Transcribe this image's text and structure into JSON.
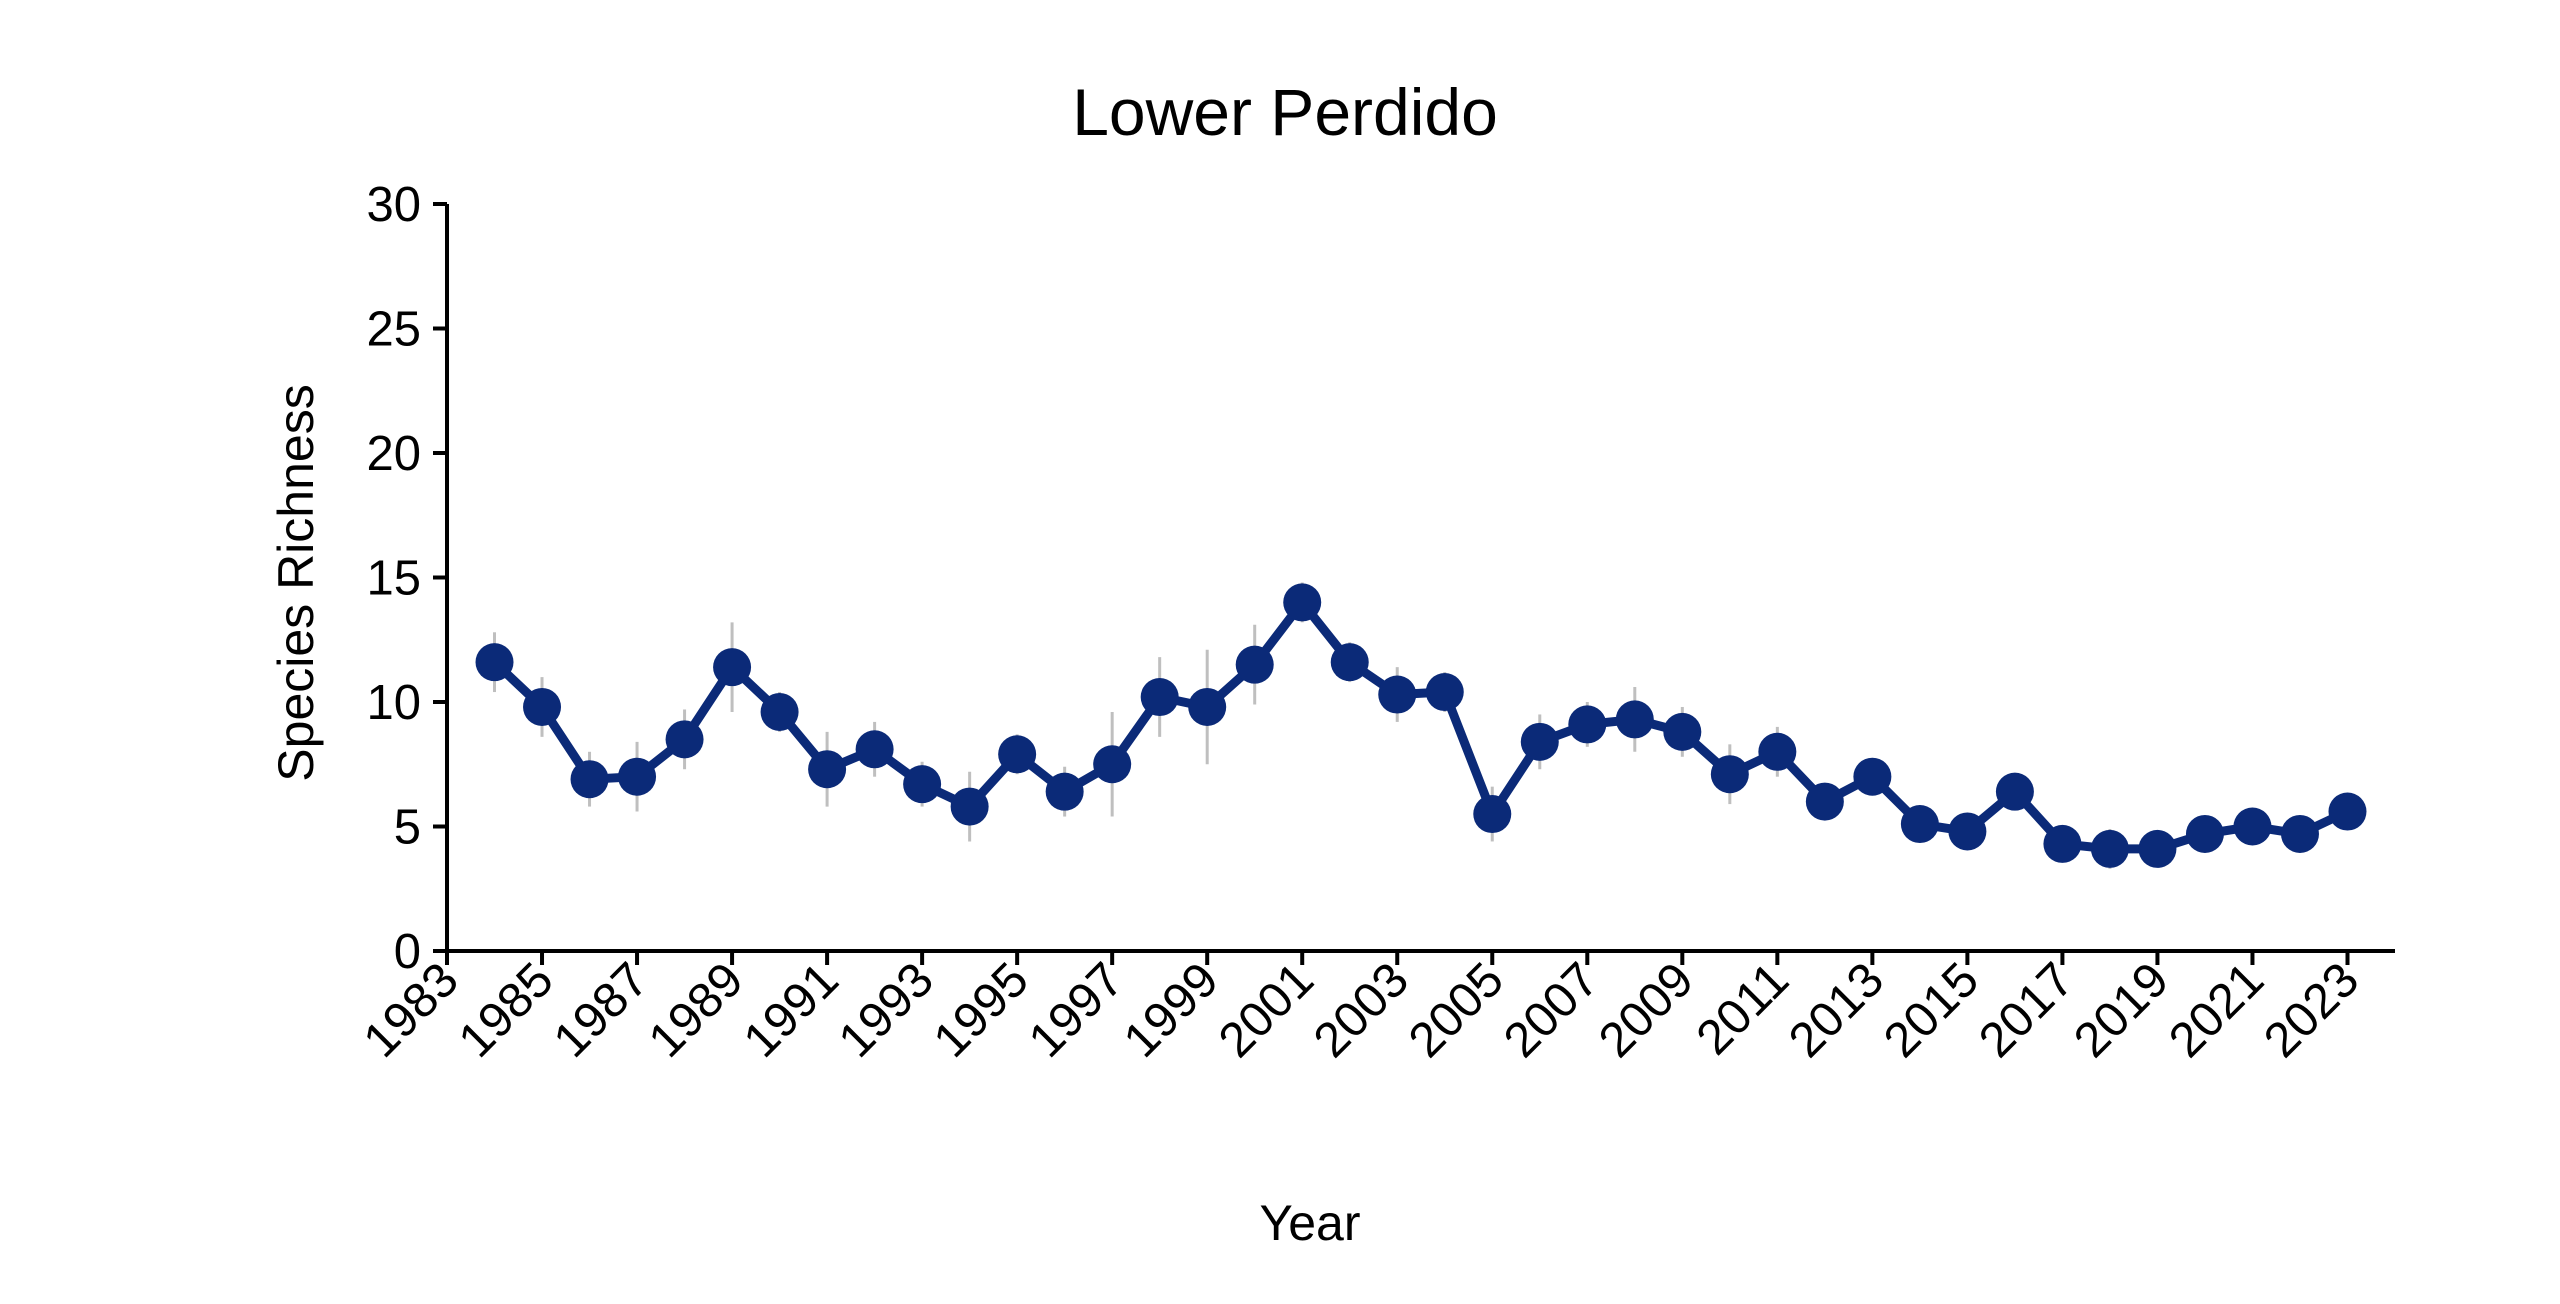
{
  "chart_data": {
    "type": "line",
    "title": "Lower Perdido",
    "xlabel": "Year",
    "ylabel": "Species Richness",
    "xlim": [
      1983,
      2024
    ],
    "ylim": [
      0,
      30
    ],
    "x_ticks": [
      "1983",
      "1985",
      "1987",
      "1989",
      "1991",
      "1993",
      "1995",
      "1997",
      "1999",
      "2001",
      "2003",
      "2005",
      "2007",
      "2009",
      "2011",
      "2013",
      "2015",
      "2017",
      "2019",
      "2021",
      "2023"
    ],
    "y_ticks": [
      "0",
      "5",
      "10",
      "15",
      "20",
      "25",
      "30"
    ],
    "grid": false,
    "legend": "none",
    "colors": {
      "series": "#0b2a78",
      "error_bars": "#bfbfbf",
      "axis": "#000000"
    },
    "series": [
      {
        "x": [
          1984,
          1985,
          1986,
          1987,
          1988,
          1989,
          1990,
          1991,
          1992,
          1993,
          1994,
          1995,
          1996,
          1997,
          1998,
          1999,
          2000,
          2001,
          2002,
          2003,
          2004,
          2005,
          2006,
          2007,
          2008,
          2009,
          2010,
          2011,
          2012,
          2013,
          2014,
          2015,
          2016,
          2017,
          2018,
          2019,
          2020,
          2021,
          2022,
          2023
        ],
        "values": [
          11.6,
          9.8,
          6.9,
          7.0,
          8.5,
          11.4,
          9.6,
          7.3,
          8.1,
          6.7,
          5.8,
          7.9,
          6.4,
          7.5,
          10.2,
          9.8,
          11.5,
          14.0,
          11.6,
          10.3,
          10.4,
          5.5,
          8.4,
          9.1,
          9.3,
          8.8,
          7.1,
          8.0,
          6.0,
          7.0,
          5.1,
          4.8,
          6.4,
          4.3,
          4.1,
          4.1,
          4.7,
          5.0,
          4.7,
          5.6
        ],
        "error_low": [
          10.4,
          8.6,
          5.8,
          5.6,
          7.3,
          9.6,
          8.8,
          5.8,
          7.0,
          5.8,
          4.4,
          7.1,
          5.4,
          5.4,
          8.6,
          7.5,
          9.9,
          13.2,
          10.8,
          9.2,
          9.6,
          4.4,
          7.3,
          8.2,
          8.0,
          7.8,
          5.9,
          7.0,
          5.3,
          6.3,
          4.6,
          4.1,
          5.8,
          3.7,
          3.3,
          3.6,
          4.2,
          4.5,
          4.2,
          5.1
        ],
        "error_high": [
          12.8,
          11.0,
          8.0,
          8.4,
          9.7,
          13.2,
          10.4,
          8.8,
          9.2,
          7.6,
          7.2,
          8.7,
          7.4,
          9.6,
          11.8,
          12.1,
          13.1,
          14.8,
          12.4,
          11.4,
          11.2,
          6.6,
          9.5,
          10.0,
          10.6,
          9.8,
          8.3,
          9.0,
          6.7,
          7.7,
          5.6,
          5.5,
          7.0,
          4.9,
          4.9,
          4.6,
          5.2,
          5.5,
          5.2,
          6.1
        ]
      }
    ]
  }
}
